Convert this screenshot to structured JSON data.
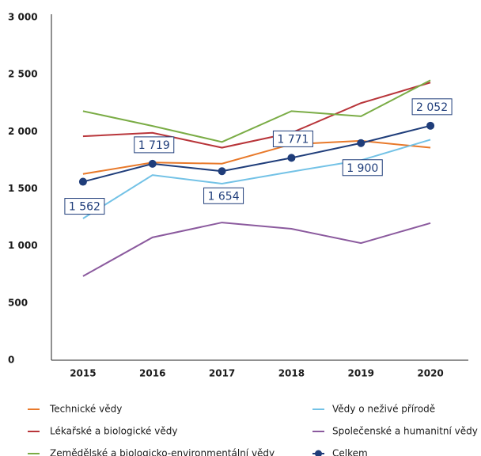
{
  "chart_data": {
    "type": "line",
    "categories": [
      "2015",
      "2016",
      "2017",
      "2018",
      "2019",
      "2020"
    ],
    "ylim": [
      0,
      3000
    ],
    "yticks": [
      0,
      500,
      {
        "value": 1000,
        "label": "1 000"
      },
      {
        "value": 1500,
        "label": "1 500"
      },
      {
        "value": 2000,
        "label": "2 000"
      },
      {
        "value": 2500,
        "label": "2 500"
      },
      {
        "value": 3000,
        "label": "3 000"
      }
    ],
    "series": [
      {
        "name": "Technické vědy",
        "color": "#e8792a",
        "values": [
          1630,
          1730,
          1720,
          1890,
          1920,
          1860
        ]
      },
      {
        "name": "Vědy o neživé přírodě",
        "color": "#73c2e6",
        "values": [
          1240,
          1620,
          1545,
          1650,
          1750,
          1930
        ]
      },
      {
        "name": "Lékařské a biologické vědy",
        "color": "#b8353a",
        "values": [
          1960,
          1990,
          1860,
          1990,
          2250,
          2430
        ]
      },
      {
        "name": "Společenské a humanitní vědy",
        "color": "#8b5a9e",
        "values": [
          735,
          1075,
          1205,
          1150,
          1025,
          1200
        ]
      },
      {
        "name": "Zemědělské a biologicko-environmentální vědy",
        "color": "#7aac45",
        "values": [
          2180,
          2050,
          1910,
          2180,
          2135,
          2450
        ]
      },
      {
        "name": "Celkem",
        "color": "#1f3d7a",
        "marker": "circle",
        "values": [
          1562,
          1719,
          1654,
          1771,
          1900,
          2052
        ],
        "value_labels": [
          "1 562",
          "1 719",
          "1 654",
          "1 771",
          "1 900",
          "2 052"
        ]
      }
    ]
  }
}
